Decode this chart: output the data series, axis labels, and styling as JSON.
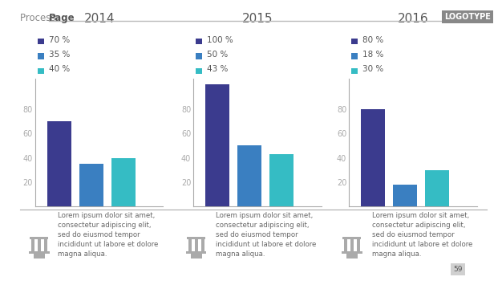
{
  "title_light": "Process ",
  "title_bold": "Page",
  "logotype": "LOGOTYPE",
  "groups": [
    {
      "year": "2014",
      "values": [
        70,
        35,
        40
      ],
      "labels": [
        "70 %",
        "35 %",
        "40 %"
      ],
      "colors": [
        "#3b3b8e",
        "#3a7fc1",
        "#35bcc4"
      ]
    },
    {
      "year": "2015",
      "values": [
        100,
        50,
        43
      ],
      "labels": [
        "100 %",
        "50 %",
        "43 %"
      ],
      "colors": [
        "#3b3b8e",
        "#3a7fc1",
        "#35bcc4"
      ]
    },
    {
      "year": "2016",
      "values": [
        80,
        18,
        30
      ],
      "labels": [
        "80 %",
        "18 %",
        "30 %"
      ],
      "colors": [
        "#3b3b8e",
        "#3a7fc1",
        "#35bcc4"
      ]
    }
  ],
  "ylim": [
    0,
    105
  ],
  "yticks": [
    20,
    40,
    60,
    80
  ],
  "footer_text": "Lorem ipsum dolor sit amet,\nconsectetur adipiscing elit,\nsed do eiusmod tempor\nincididunt ut labore et dolore\nmagna aliqua.",
  "page_number": "59",
  "background_color": "#ffffff",
  "bar_width": 0.18,
  "header_line_color": "#bbbbbb",
  "axis_line_color": "#aaaaaa",
  "tick_color": "#aaaaaa",
  "year_fontsize": 11,
  "legend_fontsize": 7.5,
  "footer_fontsize": 6.2,
  "ylabel_fontsize": 7
}
